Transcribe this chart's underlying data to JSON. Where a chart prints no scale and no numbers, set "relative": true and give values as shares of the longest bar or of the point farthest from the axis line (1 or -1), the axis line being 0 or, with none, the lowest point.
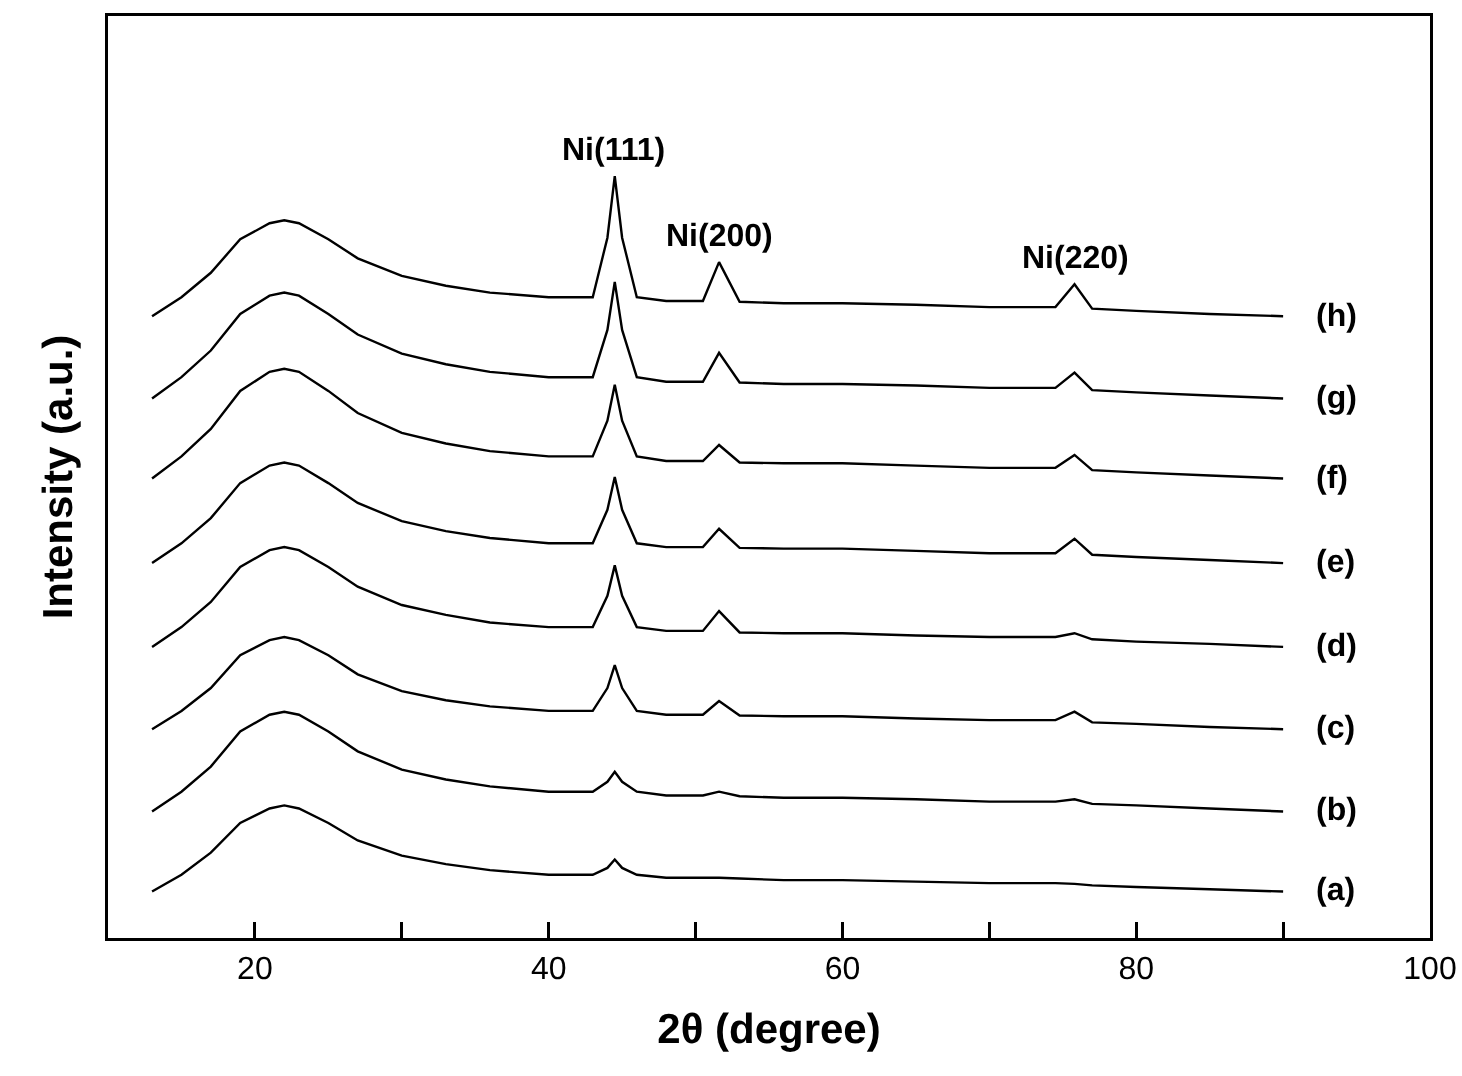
{
  "chart_data": {
    "type": "line",
    "relative": true,
    "xlabel": "2θ (degree)",
    "ylabel": "Intensity (a.u.)",
    "x": [
      13,
      15,
      17,
      19,
      21,
      22,
      23,
      25,
      27,
      30,
      33,
      36,
      40,
      43,
      44,
      44.5,
      45,
      46,
      48,
      50.5,
      51.6,
      53,
      56,
      60,
      65,
      70,
      74.5,
      75.8,
      77,
      80,
      85,
      90
    ],
    "xlim": [
      10,
      100
    ],
    "xticks": [
      20,
      {
        "value": 30,
        "label": null
      },
      40,
      {
        "value": 50,
        "label": null
      },
      60,
      {
        "value": 70,
        "label": null
      },
      80,
      {
        "value": 90,
        "label": null
      },
      100
    ],
    "grid": false,
    "legend": false,
    "marker": "none",
    "line_style": "solid",
    "series": [
      {
        "name": "(a)",
        "color": "#000000",
        "values": [
          0.061,
          0.083,
          0.112,
          0.151,
          0.17,
          0.174,
          0.17,
          0.151,
          0.128,
          0.108,
          0.097,
          0.089,
          0.083,
          0.083,
          0.092,
          0.103,
          0.092,
          0.083,
          0.079,
          0.079,
          0.079,
          0.078,
          0.076,
          0.076,
          0.074,
          0.072,
          0.072,
          0.071,
          0.069,
          0.067,
          0.064,
          0.061
        ]
      },
      {
        "name": "(b)",
        "color": "#000000",
        "values": [
          0.166,
          0.192,
          0.225,
          0.271,
          0.293,
          0.297,
          0.293,
          0.271,
          0.245,
          0.221,
          0.208,
          0.199,
          0.192,
          0.192,
          0.205,
          0.218,
          0.205,
          0.192,
          0.187,
          0.187,
          0.192,
          0.186,
          0.184,
          0.184,
          0.182,
          0.179,
          0.179,
          0.182,
          0.176,
          0.174,
          0.17,
          0.166
        ]
      },
      {
        "name": "(c)",
        "color": "#000000",
        "values": [
          0.274,
          0.298,
          0.328,
          0.371,
          0.391,
          0.395,
          0.391,
          0.371,
          0.346,
          0.324,
          0.312,
          0.304,
          0.298,
          0.298,
          0.328,
          0.358,
          0.328,
          0.298,
          0.293,
          0.293,
          0.311,
          0.292,
          0.291,
          0.291,
          0.288,
          0.286,
          0.286,
          0.297,
          0.283,
          0.281,
          0.277,
          0.274
        ]
      },
      {
        "name": "(d)",
        "color": "#000000",
        "values": [
          0.382,
          0.408,
          0.441,
          0.487,
          0.509,
          0.513,
          0.509,
          0.487,
          0.461,
          0.437,
          0.424,
          0.414,
          0.408,
          0.408,
          0.449,
          0.489,
          0.449,
          0.408,
          0.403,
          0.403,
          0.429,
          0.401,
          0.4,
          0.4,
          0.397,
          0.395,
          0.395,
          0.4,
          0.392,
          0.389,
          0.386,
          0.382
        ]
      },
      {
        "name": "(e)",
        "color": "#000000",
        "values": [
          0.492,
          0.518,
          0.551,
          0.597,
          0.62,
          0.624,
          0.62,
          0.597,
          0.571,
          0.547,
          0.534,
          0.525,
          0.518,
          0.518,
          0.562,
          0.605,
          0.562,
          0.518,
          0.513,
          0.513,
          0.537,
          0.512,
          0.511,
          0.511,
          0.508,
          0.505,
          0.505,
          0.524,
          0.503,
          0.5,
          0.496,
          0.492
        ]
      },
      {
        "name": "(f)",
        "color": "#000000",
        "values": [
          0.603,
          0.632,
          0.668,
          0.718,
          0.743,
          0.747,
          0.743,
          0.718,
          0.689,
          0.663,
          0.649,
          0.639,
          0.632,
          0.632,
          0.679,
          0.726,
          0.679,
          0.632,
          0.626,
          0.626,
          0.647,
          0.624,
          0.623,
          0.623,
          0.62,
          0.617,
          0.617,
          0.634,
          0.614,
          0.611,
          0.607,
          0.603
        ]
      },
      {
        "name": "(g)",
        "color": "#000000",
        "values": [
          0.708,
          0.736,
          0.771,
          0.819,
          0.843,
          0.847,
          0.843,
          0.819,
          0.792,
          0.767,
          0.753,
          0.743,
          0.736,
          0.736,
          0.798,
          0.861,
          0.798,
          0.736,
          0.73,
          0.73,
          0.768,
          0.729,
          0.727,
          0.727,
          0.725,
          0.722,
          0.722,
          0.742,
          0.719,
          0.716,
          0.712,
          0.708
        ]
      },
      {
        "name": "(h)",
        "color": "#000000",
        "values": [
          0.816,
          0.841,
          0.873,
          0.917,
          0.938,
          0.942,
          0.938,
          0.917,
          0.892,
          0.869,
          0.856,
          0.847,
          0.841,
          0.841,
          0.919,
          1,
          0.919,
          0.841,
          0.836,
          0.836,
          0.887,
          0.835,
          0.833,
          0.833,
          0.831,
          0.828,
          0.828,
          0.858,
          0.826,
          0.823,
          0.819,
          0.816
        ]
      }
    ],
    "annotations": [
      {
        "text": "Ni(111)",
        "x": 44.5,
        "y": 1
      },
      {
        "text": "Ni(200)",
        "x": 51.6,
        "y": 0.887
      },
      {
        "text": "Ni(220)",
        "x": 75.8,
        "y": 0.858
      }
    ]
  }
}
